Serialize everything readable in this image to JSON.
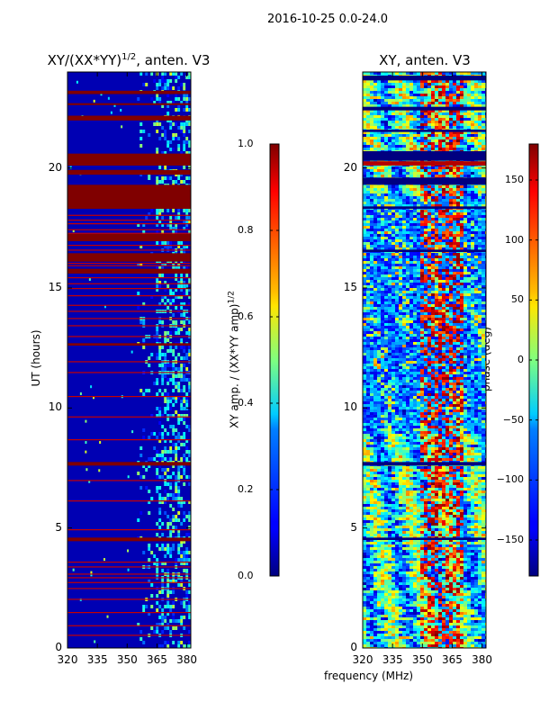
{
  "figure": {
    "suptitle": "2016-10-25 0.0-24.0",
    "xlabel": "frequency (MHz)"
  },
  "colors": {
    "background": "#ffffff",
    "jet_low": "#00007f",
    "jet_high": "#7f0000",
    "frame": "#000000"
  },
  "chart_data": [
    {
      "type": "heatmap",
      "title": "XY/(XX*YY)^1/2, anten. V3",
      "title_main": "XY/(XX*YY)",
      "title_exp": "1/2",
      "title_tail": ", anten. V3",
      "xlabel": "",
      "ylabel": "UT (hours)",
      "xlim": [
        320,
        382
      ],
      "ylim": [
        0,
        24
      ],
      "xticks": [
        "320",
        "335",
        "350",
        "365",
        "380"
      ],
      "xtick_values": [
        320,
        335,
        350,
        365,
        380
      ],
      "yticks": [
        "0",
        "5",
        "10",
        "15",
        "20"
      ],
      "ytick_values": [
        0,
        5,
        10,
        15,
        20
      ],
      "colorbar": {
        "label": "XY amp. / (XX*YY amp)^1/2",
        "label_main": "XY amp. / (XX*YY amp)",
        "label_exp": "1/2",
        "ticks": [
          "0.0",
          "0.2",
          "0.4",
          "0.6",
          "0.8",
          "1.0"
        ],
        "tick_values": [
          0.0,
          0.2,
          0.4,
          0.6,
          0.8,
          1.0
        ],
        "range": [
          0,
          1
        ],
        "colormap": "jet"
      },
      "saturated_bands_hours": [
        [
          23.08,
          23.22
        ],
        [
          22.62,
          22.7
        ],
        [
          21.98,
          22.18
        ],
        [
          20.1,
          20.6
        ],
        [
          19.72,
          19.92
        ],
        [
          18.3,
          19.3
        ],
        [
          16.95,
          17.25
        ],
        [
          16.1,
          16.45
        ],
        [
          15.6,
          15.8
        ],
        [
          12.6,
          12.7
        ],
        [
          7.6,
          7.75
        ],
        [
          4.45,
          4.6
        ]
      ],
      "thin_lines_hours": [
        20.3,
        18.05,
        17.85,
        17.7,
        17.45,
        17.3,
        16.8,
        16.6,
        16.05,
        15.95,
        15.45,
        15.2,
        15.0,
        14.7,
        14.3,
        14.05,
        13.75,
        13.45,
        13.0,
        11.95,
        11.5,
        10.5,
        9.65,
        8.7,
        7.0,
        6.15,
        4.95,
        3.6,
        3.4,
        3.1,
        2.95,
        2.75,
        2.5,
        2.05,
        1.5,
        0.95,
        0.55
      ],
      "active_band_mhz": [
        364,
        382
      ],
      "description_value": 0.05
    },
    {
      "type": "heatmap",
      "title": "XY, anten. V3",
      "xlabel": "",
      "ylabel": "",
      "xlim": [
        320,
        382
      ],
      "ylim": [
        0,
        24
      ],
      "xticks": [
        "320",
        "335",
        "350",
        "365",
        "380"
      ],
      "xtick_values": [
        320,
        335,
        350,
        365,
        380
      ],
      "yticks": [
        "0",
        "5",
        "10",
        "15",
        "20"
      ],
      "ytick_values": [
        0,
        5,
        10,
        15,
        20
      ],
      "colorbar": {
        "label": "phase (deg)",
        "ticks": [
          "−150",
          "−100",
          "−50",
          "0",
          "50",
          "100",
          "150"
        ],
        "tick_values": [
          -150,
          -100,
          -50,
          0,
          50,
          100,
          150
        ],
        "range": [
          -180,
          180
        ],
        "colormap": "jet"
      },
      "dark_bands_hours": [
        [
          23.65,
          23.85
        ],
        [
          22.4,
          22.55
        ],
        [
          21.5,
          21.6
        ],
        [
          20.3,
          20.7
        ],
        [
          19.3,
          19.6
        ],
        [
          18.3,
          18.4
        ],
        [
          16.5,
          16.6
        ],
        [
          7.6,
          7.75
        ],
        [
          4.5,
          4.6
        ]
      ],
      "red_bands_hours": [
        [
          20.1,
          20.28
        ]
      ]
    }
  ]
}
